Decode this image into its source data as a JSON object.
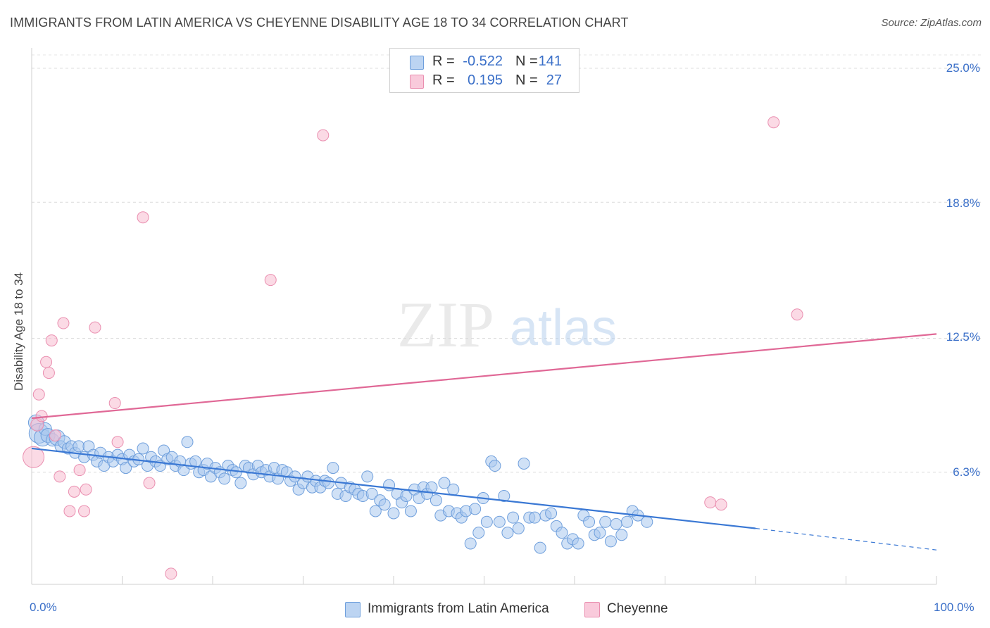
{
  "title": "IMMIGRANTS FROM LATIN AMERICA VS CHEYENNE DISABILITY AGE 18 TO 34 CORRELATION CHART",
  "source": "Source: ZipAtlas.com",
  "watermark": {
    "zip": "ZIP",
    "atlas": "atlas"
  },
  "legend_top": {
    "rows": [
      {
        "r_label": "R =",
        "r_value": "-0.522",
        "n_label": "N =",
        "n_value": "141"
      },
      {
        "r_label": "R =",
        "r_value": "0.195",
        "n_label": "N =",
        "n_value": "27"
      }
    ]
  },
  "legend_bottom": {
    "series_a": "Immigrants from Latin America",
    "series_b": "Cheyenne"
  },
  "axes": {
    "ylabel": "Disability Age 18 to 34",
    "ytick_labels": [
      "25.0%",
      "18.8%",
      "12.5%",
      "6.3%"
    ],
    "xtick_left": "0.0%",
    "xtick_right": "100.0%"
  },
  "colors": {
    "blue_fill": "#a9c8ee",
    "blue_stroke": "#6f9fdc",
    "blue_line": "#3a78d4",
    "pink_fill": "#f7bcd0",
    "pink_stroke": "#ea8fb0",
    "pink_line": "#e06896",
    "accent_text": "#3a6fc8"
  },
  "chart_data": {
    "type": "scatter",
    "xlim": [
      0,
      100
    ],
    "ylim": [
      0,
      25.0
    ],
    "y_gridlines": [
      6.3,
      12.5,
      18.8,
      25.0
    ],
    "series": [
      {
        "name": "Immigrants from Latin America",
        "color": "#a9c8ee",
        "r": -0.522,
        "n": 141,
        "trend": {
          "x0": 0,
          "y0": 7.4,
          "x1": 80,
          "y1": 3.7,
          "dashed_to_x": 100,
          "dashed_to_y": 2.7
        },
        "points": [
          [
            0.5,
            8.6,
            16
          ],
          [
            0.8,
            8.1,
            22
          ],
          [
            1.2,
            7.9,
            18
          ],
          [
            1.5,
            8.3,
            12
          ],
          [
            1.8,
            8.0,
            14
          ],
          [
            2.3,
            7.8,
            12
          ],
          [
            2.8,
            7.9,
            16
          ],
          [
            3.2,
            7.5,
            10
          ],
          [
            3.6,
            7.7,
            12
          ],
          [
            4.0,
            7.4,
            10
          ],
          [
            4.4,
            7.5,
            10
          ],
          [
            4.8,
            7.2,
            10
          ],
          [
            5.2,
            7.5,
            10
          ],
          [
            5.8,
            7.0,
            10
          ],
          [
            6.3,
            7.5,
            10
          ],
          [
            6.8,
            7.1,
            10
          ],
          [
            7.2,
            6.8,
            10
          ],
          [
            7.6,
            7.2,
            10
          ],
          [
            8.0,
            6.6,
            10
          ],
          [
            8.5,
            7.0,
            10
          ],
          [
            9.0,
            6.8,
            10
          ],
          [
            9.5,
            7.1,
            10
          ],
          [
            10.0,
            6.9,
            10
          ],
          [
            10.4,
            6.5,
            10
          ],
          [
            10.8,
            7.1,
            10
          ],
          [
            11.3,
            6.8,
            10
          ],
          [
            11.8,
            6.9,
            10
          ],
          [
            12.3,
            7.4,
            10
          ],
          [
            12.8,
            6.6,
            10
          ],
          [
            13.2,
            7.0,
            10
          ],
          [
            13.7,
            6.8,
            10
          ],
          [
            14.2,
            6.6,
            10
          ],
          [
            14.6,
            7.3,
            10
          ],
          [
            15.0,
            6.9,
            10
          ],
          [
            15.5,
            7.0,
            10
          ],
          [
            15.9,
            6.6,
            10
          ],
          [
            16.4,
            6.8,
            10
          ],
          [
            16.8,
            6.4,
            10
          ],
          [
            17.2,
            7.7,
            10
          ],
          [
            17.6,
            6.7,
            10
          ],
          [
            18.1,
            6.8,
            10
          ],
          [
            18.5,
            6.3,
            10
          ],
          [
            19.0,
            6.4,
            10
          ],
          [
            19.4,
            6.7,
            10
          ],
          [
            19.8,
            6.1,
            10
          ],
          [
            20.3,
            6.5,
            10
          ],
          [
            20.8,
            6.3,
            10
          ],
          [
            21.3,
            6.0,
            10
          ],
          [
            21.7,
            6.6,
            10
          ],
          [
            22.2,
            6.4,
            10
          ],
          [
            22.6,
            6.3,
            10
          ],
          [
            23.1,
            5.8,
            10
          ],
          [
            23.6,
            6.6,
            10
          ],
          [
            24.0,
            6.5,
            10
          ],
          [
            24.5,
            6.2,
            10
          ],
          [
            25.0,
            6.6,
            10
          ],
          [
            25.4,
            6.3,
            10
          ],
          [
            25.9,
            6.4,
            10
          ],
          [
            26.3,
            6.1,
            10
          ],
          [
            26.8,
            6.5,
            10
          ],
          [
            27.2,
            6.0,
            10
          ],
          [
            27.7,
            6.4,
            10
          ],
          [
            28.2,
            6.3,
            10
          ],
          [
            28.6,
            5.9,
            10
          ],
          [
            29.1,
            6.1,
            10
          ],
          [
            29.5,
            5.5,
            10
          ],
          [
            30.0,
            5.8,
            10
          ],
          [
            30.5,
            6.1,
            10
          ],
          [
            31.0,
            5.6,
            10
          ],
          [
            31.4,
            5.9,
            10
          ],
          [
            31.9,
            5.6,
            10
          ],
          [
            32.4,
            5.9,
            10
          ],
          [
            32.8,
            5.8,
            10
          ],
          [
            33.3,
            6.5,
            10
          ],
          [
            33.8,
            5.3,
            10
          ],
          [
            34.2,
            5.8,
            10
          ],
          [
            34.7,
            5.2,
            10
          ],
          [
            35.2,
            5.6,
            10
          ],
          [
            35.7,
            5.5,
            10
          ],
          [
            36.1,
            5.3,
            10
          ],
          [
            36.6,
            5.2,
            10
          ],
          [
            37.1,
            6.1,
            10
          ],
          [
            37.6,
            5.3,
            10
          ],
          [
            38.0,
            4.5,
            10
          ],
          [
            38.5,
            5.0,
            10
          ],
          [
            39.0,
            4.8,
            10
          ],
          [
            39.5,
            5.7,
            10
          ],
          [
            40.0,
            4.4,
            10
          ],
          [
            40.4,
            5.3,
            10
          ],
          [
            40.9,
            4.9,
            10
          ],
          [
            41.4,
            5.2,
            10
          ],
          [
            41.9,
            4.5,
            10
          ],
          [
            42.3,
            5.5,
            10
          ],
          [
            42.8,
            5.1,
            10
          ],
          [
            43.3,
            5.6,
            10
          ],
          [
            43.7,
            5.3,
            10
          ],
          [
            44.2,
            5.6,
            10
          ],
          [
            44.7,
            5.0,
            10
          ],
          [
            45.2,
            4.3,
            10
          ],
          [
            45.6,
            5.8,
            10
          ],
          [
            46.1,
            4.5,
            10
          ],
          [
            46.6,
            5.5,
            10
          ],
          [
            47.0,
            4.4,
            10
          ],
          [
            47.5,
            4.2,
            10
          ],
          [
            48.0,
            4.5,
            10
          ],
          [
            48.5,
            3.0,
            10
          ],
          [
            49.0,
            4.6,
            10
          ],
          [
            49.4,
            3.5,
            10
          ],
          [
            49.9,
            5.1,
            10
          ],
          [
            50.3,
            4.0,
            10
          ],
          [
            50.8,
            6.8,
            10
          ],
          [
            51.2,
            6.6,
            10
          ],
          [
            51.7,
            4.0,
            10
          ],
          [
            52.2,
            5.2,
            10
          ],
          [
            52.6,
            3.5,
            10
          ],
          [
            53.2,
            4.2,
            10
          ],
          [
            53.8,
            3.7,
            10
          ],
          [
            54.4,
            6.7,
            10
          ],
          [
            55.0,
            4.2,
            10
          ],
          [
            55.6,
            4.2,
            10
          ],
          [
            56.2,
            2.8,
            10
          ],
          [
            56.8,
            4.3,
            10
          ],
          [
            57.4,
            4.4,
            10
          ],
          [
            58.0,
            3.8,
            10
          ],
          [
            58.6,
            3.5,
            10
          ],
          [
            59.2,
            3.0,
            10
          ],
          [
            59.8,
            3.2,
            10
          ],
          [
            60.4,
            3.0,
            10
          ],
          [
            61.0,
            4.3,
            10
          ],
          [
            61.6,
            4.0,
            10
          ],
          [
            62.2,
            3.4,
            10
          ],
          [
            62.8,
            3.5,
            10
          ],
          [
            63.4,
            4.0,
            10
          ],
          [
            64.0,
            3.1,
            10
          ],
          [
            64.6,
            3.9,
            10
          ],
          [
            65.2,
            3.4,
            10
          ],
          [
            65.8,
            4.0,
            10
          ],
          [
            66.4,
            4.5,
            10
          ],
          [
            67.0,
            4.3,
            10
          ],
          [
            68.0,
            4.0,
            10
          ]
        ]
      },
      {
        "name": "Cheyenne",
        "color": "#f7bcd0",
        "r": 0.195,
        "n": 27,
        "trend": {
          "x0": 0,
          "y0": 8.8,
          "x1": 100,
          "y1": 12.7
        },
        "points": [
          [
            0.2,
            7.0,
            24
          ],
          [
            0.6,
            8.5,
            12
          ],
          [
            0.8,
            9.9,
            10
          ],
          [
            1.1,
            8.9,
            10
          ],
          [
            1.6,
            11.4,
            10
          ],
          [
            1.9,
            10.9,
            10
          ],
          [
            2.2,
            12.4,
            10
          ],
          [
            2.6,
            8.0,
            10
          ],
          [
            3.1,
            6.1,
            10
          ],
          [
            3.5,
            13.2,
            10
          ],
          [
            4.2,
            4.5,
            10
          ],
          [
            4.7,
            5.4,
            10
          ],
          [
            5.3,
            6.4,
            10
          ],
          [
            5.8,
            4.5,
            10
          ],
          [
            6.0,
            5.5,
            10
          ],
          [
            7.0,
            13.0,
            10
          ],
          [
            9.2,
            9.5,
            10
          ],
          [
            9.5,
            7.7,
            10
          ],
          [
            12.3,
            18.1,
            10
          ],
          [
            13.0,
            5.8,
            10
          ],
          [
            15.4,
            1.6,
            10
          ],
          [
            26.4,
            15.2,
            10
          ],
          [
            32.2,
            21.9,
            10
          ],
          [
            84.6,
            13.6,
            10
          ],
          [
            82.0,
            22.5,
            10
          ],
          [
            75.0,
            4.9,
            10
          ],
          [
            76.2,
            4.8,
            10
          ]
        ]
      }
    ]
  }
}
